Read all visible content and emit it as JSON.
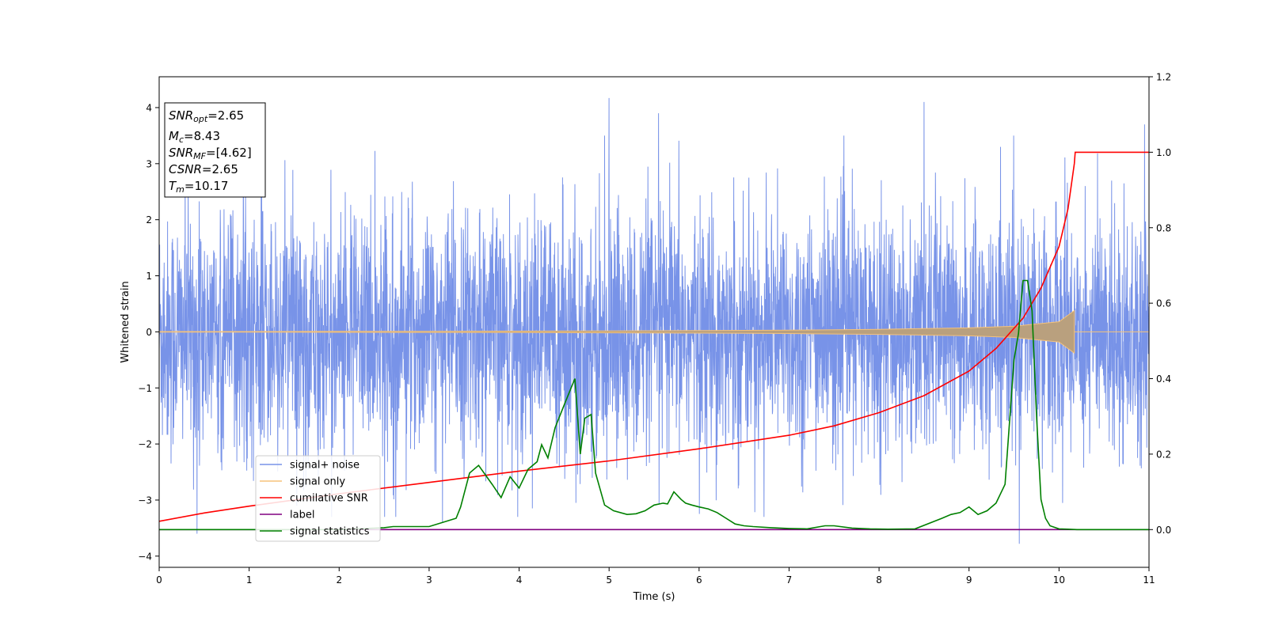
{
  "chart_data": {
    "type": "line",
    "xlabel": "Time (s)",
    "ylabel": "Whitened strain",
    "xlim": [
      0,
      11
    ],
    "ylim": [
      -4.2,
      4.55
    ],
    "y2lim": [
      -0.1,
      1.2
    ],
    "xticks": [
      "0",
      "1",
      "2",
      "3",
      "4",
      "5",
      "6",
      "7",
      "8",
      "9",
      "10",
      "11"
    ],
    "yticks": [
      "−4",
      "−3",
      "−2",
      "−1",
      "0",
      "1",
      "2",
      "3",
      "4"
    ],
    "y2ticks": [
      "0.0",
      "0.2",
      "0.4",
      "0.6",
      "0.8",
      "1.0",
      "1.2"
    ],
    "grid": false,
    "legend_position": "lower-left",
    "legend": [
      {
        "name": "signal+ noise",
        "color": "#7893e8"
      },
      {
        "name": "signal only",
        "color": "#f5c27a"
      },
      {
        "name": "cumilative SNR",
        "color": "#ff0000"
      },
      {
        "name": "label",
        "color": "#800080"
      },
      {
        "name": "signal statistics",
        "color": "#008000"
      }
    ],
    "info_box": [
      {
        "sym": "SNR",
        "sub": "opt",
        "value": "=2.65"
      },
      {
        "sym": "M",
        "sub": "c",
        "value": "=8.43"
      },
      {
        "sym": "SNR",
        "sub": "MF",
        "value": "=[4.62]"
      },
      {
        "sym": "CSNR",
        "sub": "",
        "value": "=2.65"
      },
      {
        "sym": "T",
        "sub": "m",
        "value": "=10.17"
      }
    ],
    "series": [
      {
        "name": "signal+ noise",
        "axis": "left",
        "color": "#7893e8",
        "noise_band": {
          "x": [
            0,
            11
          ],
          "typical_range": [
            -2.4,
            2.4
          ],
          "extreme_max": 4.17,
          "extreme_min": -3.78
        },
        "spikes": [
          [
            0.42,
            -3.6
          ],
          [
            4.63,
            -3.05
          ],
          [
            5.0,
            4.17
          ],
          [
            5.55,
            3.9
          ],
          [
            8.5,
            4.1
          ],
          [
            9.56,
            -3.78
          ],
          [
            10.95,
            3.7
          ],
          [
            3.15,
            -3.4
          ],
          [
            9.35,
            3.3
          ],
          [
            6.72,
            -3.3
          ]
        ]
      },
      {
        "name": "signal only",
        "axis": "left",
        "color": "#f5c27a",
        "envelope": {
          "x": [
            0,
            1,
            2,
            3,
            4,
            5,
            6,
            7,
            8,
            9,
            9.5,
            10,
            10.17
          ],
          "amp": [
            0.005,
            0.006,
            0.008,
            0.01,
            0.013,
            0.017,
            0.022,
            0.03,
            0.045,
            0.07,
            0.1,
            0.18,
            0.38
          ]
        }
      },
      {
        "name": "cumilative SNR",
        "axis": "right",
        "color": "#ff0000",
        "x": [
          0,
          0.5,
          1,
          2,
          3,
          4,
          5,
          6,
          7,
          7.5,
          8,
          8.5,
          9,
          9.3,
          9.6,
          9.8,
          10,
          10.1,
          10.17,
          10.18,
          11
        ],
        "y": [
          0.022,
          0.044,
          0.062,
          0.095,
          0.125,
          0.155,
          0.182,
          0.214,
          0.25,
          0.275,
          0.31,
          0.355,
          0.42,
          0.48,
          0.56,
          0.64,
          0.75,
          0.85,
          0.97,
          1.0,
          1.0
        ]
      },
      {
        "name": "label",
        "axis": "right",
        "color": "#800080",
        "x": [
          0,
          11
        ],
        "y": [
          0.0,
          0.0
        ]
      },
      {
        "name": "signal statistics",
        "axis": "right",
        "color": "#008000",
        "x": [
          0,
          1,
          2,
          2.5,
          2.6,
          3.0,
          3.3,
          3.35,
          3.45,
          3.55,
          3.7,
          3.8,
          3.9,
          4.0,
          4.1,
          4.2,
          4.25,
          4.32,
          4.4,
          4.5,
          4.62,
          4.68,
          4.73,
          4.8,
          4.85,
          4.95,
          5.05,
          5.2,
          5.3,
          5.4,
          5.5,
          5.6,
          5.65,
          5.72,
          5.8,
          5.85,
          5.92,
          6.0,
          6.1,
          6.2,
          6.3,
          6.4,
          6.5,
          6.6,
          6.8,
          7.0,
          7.2,
          7.4,
          7.5,
          7.7,
          7.9,
          8.1,
          8.4,
          8.7,
          8.8,
          8.9,
          9.0,
          9.1,
          9.2,
          9.3,
          9.4,
          9.5,
          9.55,
          9.6,
          9.65,
          9.7,
          9.75,
          9.8,
          9.85,
          9.9,
          10.0,
          10.1,
          10.2,
          10.5,
          11
        ],
        "y": [
          0.0,
          0.0,
          0.0,
          0.005,
          0.008,
          0.008,
          0.03,
          0.06,
          0.15,
          0.17,
          0.12,
          0.085,
          0.14,
          0.11,
          0.16,
          0.18,
          0.225,
          0.19,
          0.27,
          0.33,
          0.4,
          0.2,
          0.295,
          0.305,
          0.15,
          0.065,
          0.05,
          0.04,
          0.042,
          0.05,
          0.065,
          0.07,
          0.068,
          0.1,
          0.08,
          0.07,
          0.065,
          0.06,
          0.055,
          0.045,
          0.03,
          0.015,
          0.01,
          0.008,
          0.005,
          0.003,
          0.002,
          0.01,
          0.01,
          0.004,
          0.002,
          0.001,
          0.002,
          0.03,
          0.04,
          0.045,
          0.06,
          0.04,
          0.05,
          0.07,
          0.12,
          0.45,
          0.52,
          0.66,
          0.66,
          0.58,
          0.3,
          0.08,
          0.03,
          0.01,
          0.002,
          0.001,
          0.0,
          0.0,
          0.0
        ]
      }
    ]
  }
}
